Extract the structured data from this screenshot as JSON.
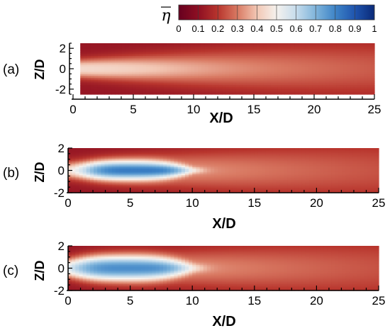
{
  "chart_data": [
    {
      "type": "heatmap",
      "panel_label": "(a)",
      "xlabel": "X/D",
      "ylabel": "Z/D",
      "xlim": [
        0,
        25
      ],
      "ylim": [
        -2.5,
        2.5
      ],
      "x_ticks": [
        0,
        5,
        10,
        15,
        20,
        25
      ],
      "y_ticks": [
        -2,
        0,
        2
      ],
      "x_extent": [
        0.6,
        25
      ],
      "core_center": 2.5,
      "core_length": 11,
      "core_half_width": 0.55,
      "core_peak_value": 0.45,
      "background_value": 0.12
    },
    {
      "type": "heatmap",
      "panel_label": "(b)",
      "xlabel": "X/D",
      "ylabel": "Z/D",
      "xlim": [
        0,
        25
      ],
      "ylim": [
        -2,
        2
      ],
      "x_ticks": [
        0,
        5,
        10,
        15,
        20,
        25
      ],
      "y_ticks": [
        -2,
        0,
        2
      ],
      "x_extent": [
        0,
        25
      ],
      "core_center": 5.5,
      "core_length": 9,
      "core_half_width": 0.6,
      "core_peak_value": 0.82,
      "plume_value": 0.42,
      "background_value": 0.12
    },
    {
      "type": "heatmap",
      "panel_label": "(c)",
      "xlabel": "X/D",
      "ylabel": "Z/D",
      "xlim": [
        0,
        25
      ],
      "ylim": [
        -2,
        2
      ],
      "x_ticks": [
        0,
        5,
        10,
        15,
        20,
        25
      ],
      "y_ticks": [
        -2,
        0,
        2
      ],
      "x_extent": [
        0,
        25
      ],
      "core_center": 5,
      "core_length": 10,
      "core_half_width": 0.8,
      "core_peak_value": 0.78,
      "plume_value": 0.42,
      "background_value": 0.12
    }
  ],
  "colorbar": {
    "symbol": "η",
    "range": [
      0,
      1
    ],
    "ticks": [
      "0",
      "0.1",
      "0.2",
      "0.3",
      "0.4",
      "0.5",
      "0.6",
      "0.7",
      "0.8",
      "0.9",
      "1"
    ],
    "stops": [
      {
        "value": 0.0,
        "color": "#67001f"
      },
      {
        "value": 0.1,
        "color": "#8e0f22"
      },
      {
        "value": 0.2,
        "color": "#b8352d"
      },
      {
        "value": 0.3,
        "color": "#d97a63"
      },
      {
        "value": 0.4,
        "color": "#f2c7b4"
      },
      {
        "value": 0.5,
        "color": "#f5f2ee"
      },
      {
        "value": 0.6,
        "color": "#c6dcec"
      },
      {
        "value": 0.7,
        "color": "#7fb4db"
      },
      {
        "value": 0.8,
        "color": "#3e84c7"
      },
      {
        "value": 0.9,
        "color": "#1f54ae"
      },
      {
        "value": 1.0,
        "color": "#0a2a78"
      }
    ]
  }
}
